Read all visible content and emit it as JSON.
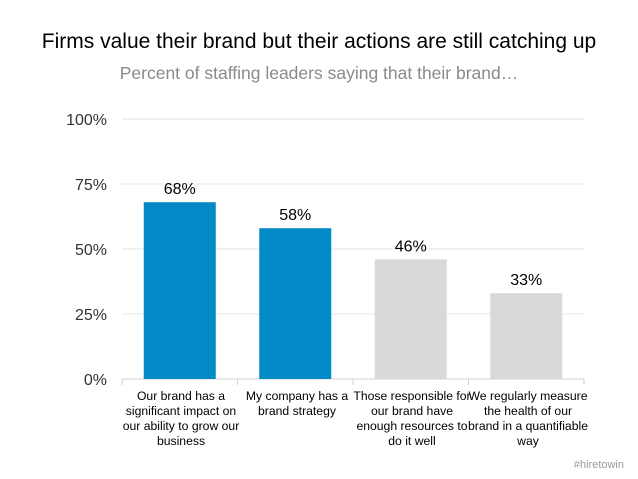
{
  "chart_data": {
    "type": "bar",
    "title": "Firms value their brand but their actions are still catching up",
    "subtitle": "Percent of staffing leaders saying that their brand…",
    "categories": [
      "Our brand has a significant impact on our ability to grow our business",
      "My company has a brand strategy",
      "Those responsible for our brand have enough resources to do it well",
      "We regularly measure the health of our brand in a quantifiable way"
    ],
    "values": [
      68,
      58,
      46,
      33
    ],
    "value_labels": [
      "68%",
      "58%",
      "46%",
      "33%"
    ],
    "bar_colors": [
      "#0389c5",
      "#0389c5",
      "#d9d9d9",
      "#d9d9d9"
    ],
    "y_ticks": [
      0,
      25,
      50,
      75,
      100
    ],
    "y_tick_labels": [
      "0%",
      "25%",
      "50%",
      "75%",
      "100%"
    ],
    "ylim": [
      0,
      100
    ],
    "xlabel": "",
    "ylabel": "",
    "grid": true,
    "legend": "none"
  },
  "watermark": "#hiretowin"
}
